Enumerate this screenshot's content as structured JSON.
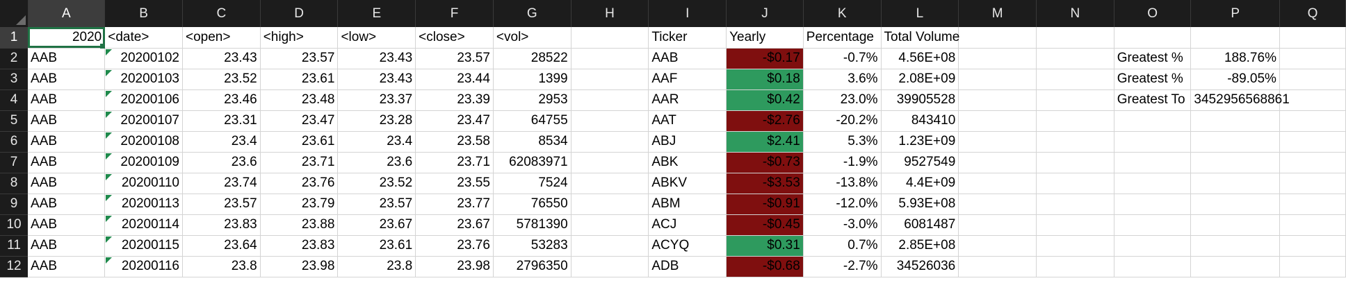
{
  "column_headers": [
    "A",
    "B",
    "C",
    "D",
    "E",
    "F",
    "G",
    "H",
    "I",
    "J",
    "K",
    "L",
    "M",
    "N",
    "O",
    "P",
    "Q"
  ],
  "active_cell": "A1",
  "rows": [
    {
      "n": "1",
      "A": "2020",
      "B": "<date>",
      "C": "<open>",
      "D": "<high>",
      "E": "<low>",
      "F": "<close>",
      "G": "<vol>",
      "H": "",
      "I": "Ticker",
      "J": "Yearly",
      "K": "Percentage",
      "L": "Total Volume",
      "M": "",
      "N": "",
      "O": "",
      "P": "",
      "Q": "",
      "J_status": "none"
    },
    {
      "n": "2",
      "A": "AAB",
      "B": "20200102",
      "C": "23.43",
      "D": "23.57",
      "E": "23.43",
      "F": "23.57",
      "G": "28522",
      "H": "",
      "I": "AAB",
      "J": "-$0.17",
      "K": "-0.7%",
      "L": "4.56E+08",
      "M": "",
      "N": "",
      "O": "Greatest %",
      "P": "188.76%",
      "Q": "",
      "J_status": "negative"
    },
    {
      "n": "3",
      "A": "AAB",
      "B": "20200103",
      "C": "23.52",
      "D": "23.61",
      "E": "23.43",
      "F": "23.44",
      "G": "1399",
      "H": "",
      "I": "AAF",
      "J": "$0.18",
      "K": "3.6%",
      "L": "2.08E+09",
      "M": "",
      "N": "",
      "O": "Greatest %",
      "P": "-89.05%",
      "Q": "",
      "J_status": "positive"
    },
    {
      "n": "4",
      "A": "AAB",
      "B": "20200106",
      "C": "23.46",
      "D": "23.48",
      "E": "23.37",
      "F": "23.39",
      "G": "2953",
      "H": "",
      "I": "AAR",
      "J": "$0.42",
      "K": "23.0%",
      "L": "39905528",
      "M": "",
      "N": "",
      "O": "Greatest To",
      "P": "3452956568861",
      "Q": "",
      "J_status": "positive"
    },
    {
      "n": "5",
      "A": "AAB",
      "B": "20200107",
      "C": "23.31",
      "D": "23.47",
      "E": "23.28",
      "F": "23.47",
      "G": "64755",
      "H": "",
      "I": "AAT",
      "J": "-$2.76",
      "K": "-20.2%",
      "L": "843410",
      "M": "",
      "N": "",
      "O": "",
      "P": "",
      "Q": "",
      "J_status": "negative"
    },
    {
      "n": "6",
      "A": "AAB",
      "B": "20200108",
      "C": "23.4",
      "D": "23.61",
      "E": "23.4",
      "F": "23.58",
      "G": "8534",
      "H": "",
      "I": "ABJ",
      "J": "$2.41",
      "K": "5.3%",
      "L": "1.23E+09",
      "M": "",
      "N": "",
      "O": "",
      "P": "",
      "Q": "",
      "J_status": "positive"
    },
    {
      "n": "7",
      "A": "AAB",
      "B": "20200109",
      "C": "23.6",
      "D": "23.71",
      "E": "23.6",
      "F": "23.71",
      "G": "62083971",
      "H": "",
      "I": "ABK",
      "J": "-$0.73",
      "K": "-1.9%",
      "L": "9527549",
      "M": "",
      "N": "",
      "O": "",
      "P": "",
      "Q": "",
      "J_status": "negative"
    },
    {
      "n": "8",
      "A": "AAB",
      "B": "20200110",
      "C": "23.74",
      "D": "23.76",
      "E": "23.52",
      "F": "23.55",
      "G": "7524",
      "H": "",
      "I": "ABKV",
      "J": "-$3.53",
      "K": "-13.8%",
      "L": "4.4E+09",
      "M": "",
      "N": "",
      "O": "",
      "P": "",
      "Q": "",
      "J_status": "negative"
    },
    {
      "n": "9",
      "A": "AAB",
      "B": "20200113",
      "C": "23.57",
      "D": "23.79",
      "E": "23.57",
      "F": "23.77",
      "G": "76550",
      "H": "",
      "I": "ABM",
      "J": "-$0.91",
      "K": "-12.0%",
      "L": "5.93E+08",
      "M": "",
      "N": "",
      "O": "",
      "P": "",
      "Q": "",
      "J_status": "negative"
    },
    {
      "n": "10",
      "A": "AAB",
      "B": "20200114",
      "C": "23.83",
      "D": "23.88",
      "E": "23.67",
      "F": "23.67",
      "G": "5781390",
      "H": "",
      "I": "ACJ",
      "J": "-$0.45",
      "K": "-3.0%",
      "L": "6081487",
      "M": "",
      "N": "",
      "O": "",
      "P": "",
      "Q": "",
      "J_status": "negative"
    },
    {
      "n": "11",
      "A": "AAB",
      "B": "20200115",
      "C": "23.64",
      "D": "23.83",
      "E": "23.61",
      "F": "23.76",
      "G": "53283",
      "H": "",
      "I": "ACYQ",
      "J": "$0.31",
      "K": "0.7%",
      "L": "2.85E+08",
      "M": "",
      "N": "",
      "O": "",
      "P": "",
      "Q": "",
      "J_status": "positive"
    },
    {
      "n": "12",
      "A": "AAB",
      "B": "20200116",
      "C": "23.8",
      "D": "23.98",
      "E": "23.8",
      "F": "23.98",
      "G": "2796350",
      "H": "",
      "I": "ADB",
      "J": "-$0.68",
      "K": "-2.7%",
      "L": "34526036",
      "M": "",
      "N": "",
      "O": "",
      "P": "",
      "Q": "",
      "J_status": "negative"
    }
  ],
  "colors": {
    "header_bg": "#1c1c1c",
    "header_selected_bg": "#3d3d3d",
    "header_text": "#e6e6e6",
    "negative_fill": "#7f0f0f",
    "positive_fill": "#2e9a5e",
    "selection": "#207245",
    "gridline": "#d4d4d4"
  }
}
